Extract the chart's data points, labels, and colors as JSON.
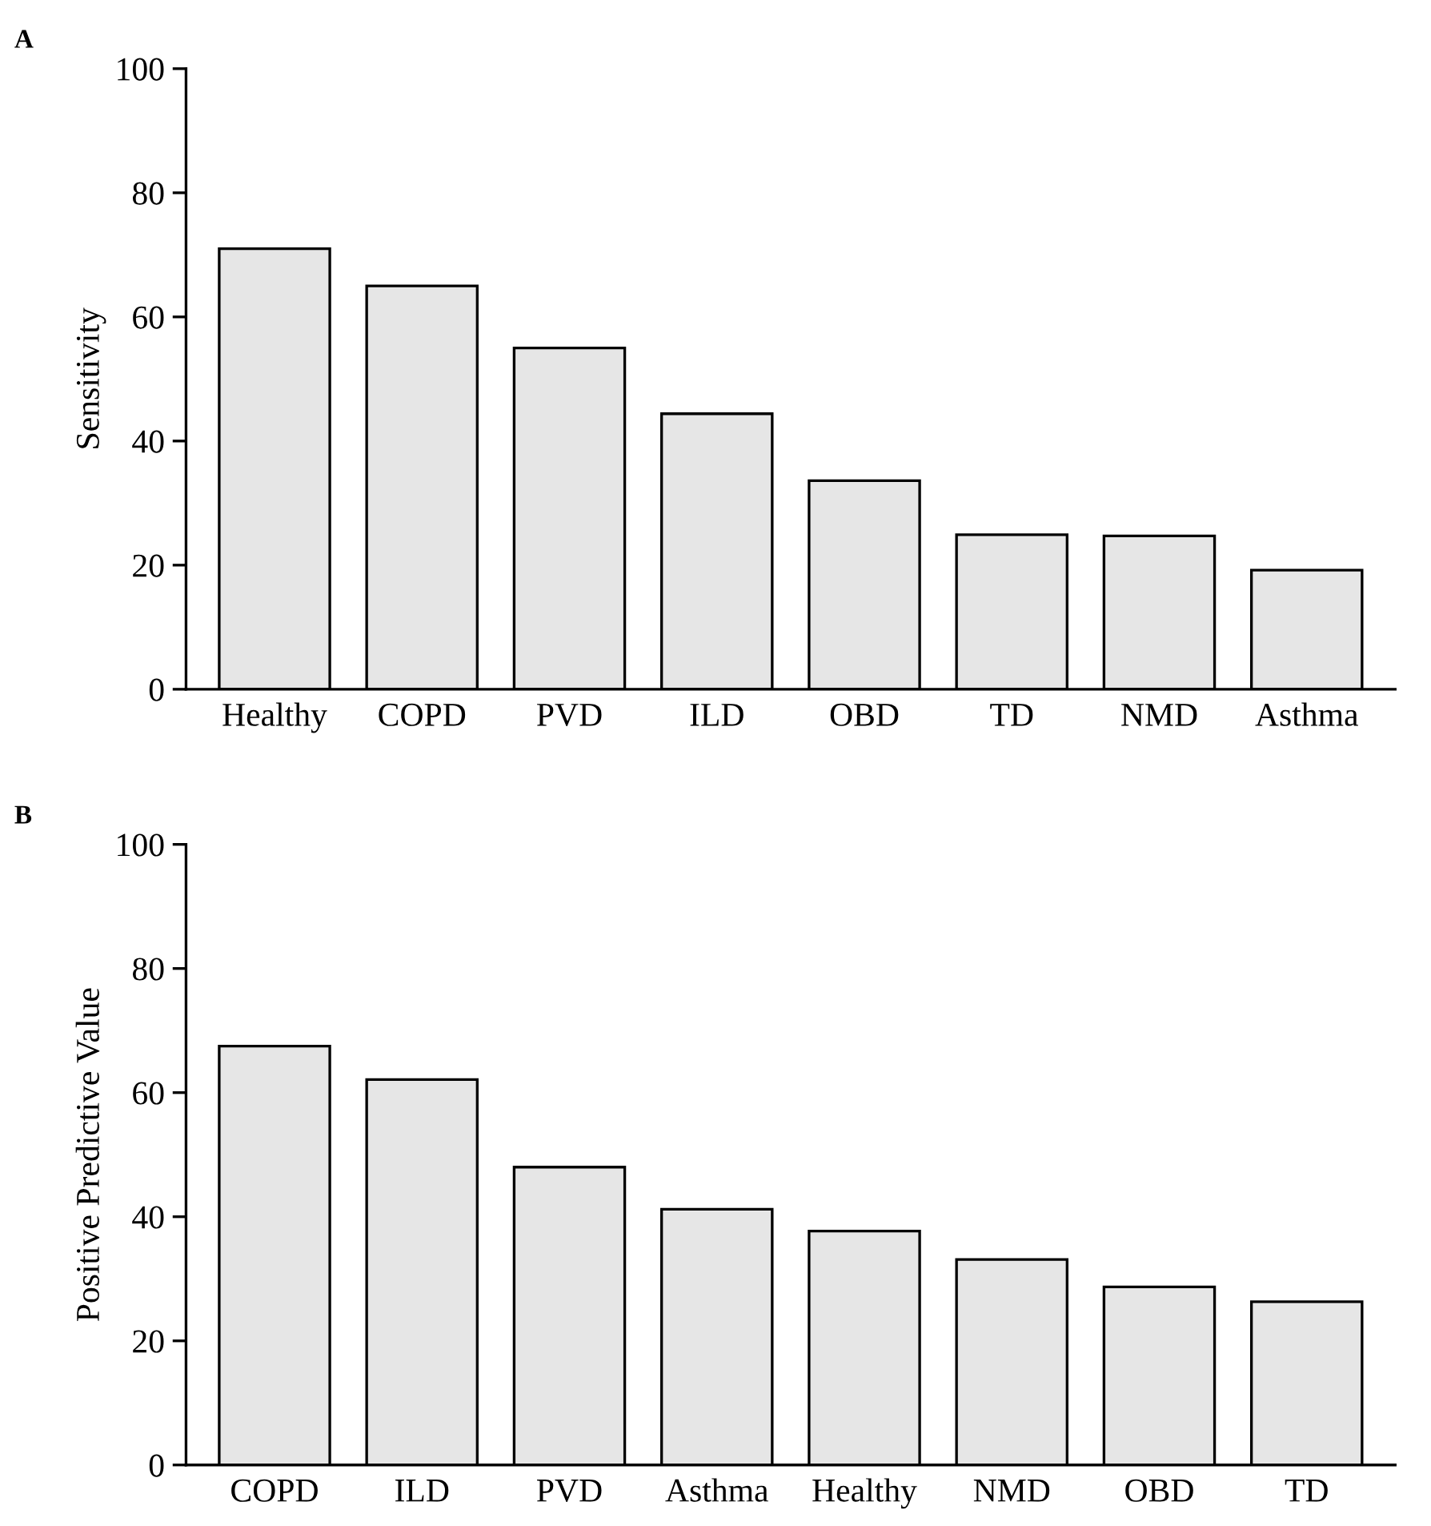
{
  "chart_data": [
    {
      "type": "bar",
      "annotations": [
        "A"
      ],
      "ylabel": "Sensitivity",
      "categories": [
        "Healthy",
        "COPD",
        "PVD",
        "ILD",
        "OBD",
        "TD",
        "NMD",
        "Asthma"
      ],
      "values": [
        71,
        65,
        55,
        44.4,
        33.6,
        24.9,
        24.7,
        19.2
      ],
      "color": "#e6e6e6",
      "ylim": [
        0,
        100
      ],
      "yticks": [
        0,
        20,
        40,
        60,
        80,
        100
      ],
      "grid": false,
      "legend": false
    },
    {
      "type": "bar",
      "annotations": [
        "B"
      ],
      "ylabel": "Positive Predictive Value",
      "categories": [
        "COPD",
        "ILD",
        "PVD",
        "Asthma",
        "Healthy",
        "NMD",
        "OBD",
        "TD"
      ],
      "values": [
        67.5,
        62.1,
        48,
        41.2,
        37.7,
        33.1,
        28.7,
        26.3
      ],
      "color": "#e6e6e6",
      "ylim": [
        0,
        100
      ],
      "yticks": [
        0,
        20,
        40,
        60,
        80,
        100
      ],
      "grid": false,
      "legend": false
    }
  ]
}
